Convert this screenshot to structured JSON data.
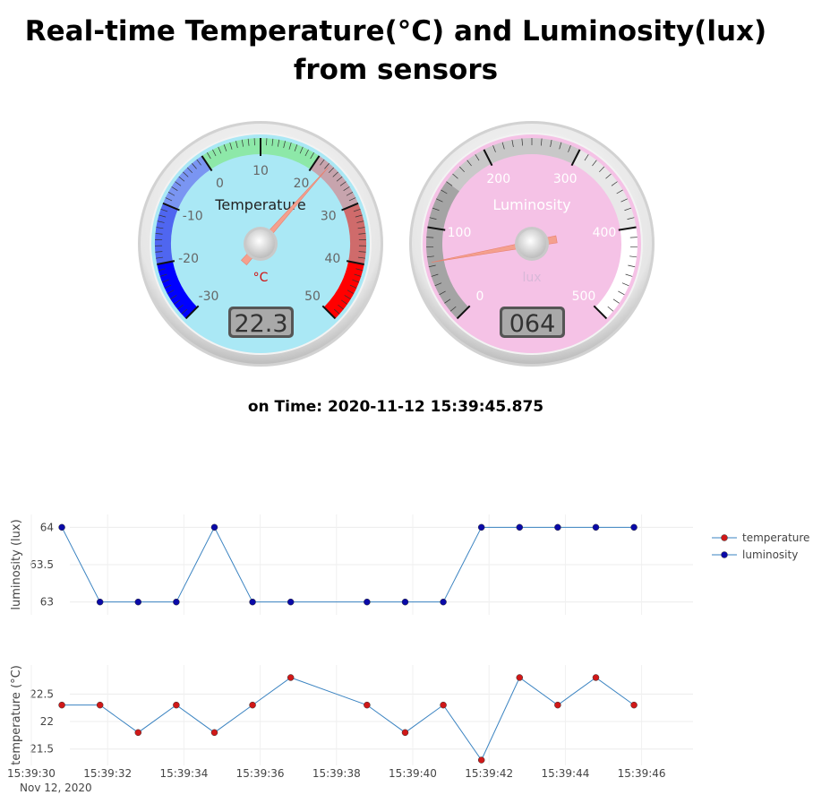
{
  "page": {
    "title": "Real-time Temperature(°C) and Luminosity(lux) from sensors",
    "time_label": "on Time:",
    "time_value": "2020-11-12 15:39:45.875"
  },
  "gauges": {
    "temperature": {
      "title": "Temperature",
      "units": "°C",
      "value": 22.3,
      "display": "22.3",
      "min": -30,
      "max": 50,
      "ticks": [
        "-30",
        "-20",
        "-10",
        "0",
        "10",
        "20",
        "30",
        "40",
        "50"
      ],
      "colors": {
        "face": "#aae8f5",
        "needle": "#f4a08e",
        "units": "#d01010"
      },
      "highlights": [
        {
          "from": -30,
          "to": -20,
          "color": "#0000ff"
        },
        {
          "from": -20,
          "to": -10,
          "color": "#4f66f0"
        },
        {
          "from": -10,
          "to": 0,
          "color": "#7a95f2"
        },
        {
          "from": 0,
          "to": 20,
          "color": "#8de8a8"
        },
        {
          "from": 20,
          "to": 30,
          "color": "#c7a4ad"
        },
        {
          "from": 30,
          "to": 40,
          "color": "#cf6b6b"
        },
        {
          "from": 40,
          "to": 50,
          "color": "#ff0000"
        }
      ]
    },
    "luminosity": {
      "title": "Luminosity",
      "units": "lux",
      "value": 64,
      "display": "064",
      "min": 0,
      "max": 500,
      "ticks": [
        "0",
        "100",
        "200",
        "300",
        "400",
        "500"
      ],
      "colors": {
        "face": "#f5c2e6",
        "needle": "#f4a08e",
        "units": "#d8b8d8"
      },
      "highlights": [
        {
          "from": 0,
          "to": 150,
          "color": "#a4a4a4"
        },
        {
          "from": 150,
          "to": 300,
          "color": "#c8c8c8"
        },
        {
          "from": 300,
          "to": 400,
          "color": "#e8e8e8"
        },
        {
          "from": 400,
          "to": 500,
          "color": "#ffffff"
        }
      ]
    }
  },
  "chart_data": [
    {
      "type": "line",
      "ylabel": "luminosity (lux)",
      "ylim": [
        62.9,
        64.1
      ],
      "yticks": [
        "63",
        "63.5",
        "64"
      ],
      "x": [
        "15:39:30.8",
        "15:39:31.8",
        "15:39:32.8",
        "15:39:33.8",
        "15:39:34.8",
        "15:39:35.8",
        "15:39:36.8",
        "15:39:38.8",
        "15:39:39.8",
        "15:39:40.8",
        "15:39:41.8",
        "15:39:42.8",
        "15:39:43.8",
        "15:39:44.8",
        "15:39:45.8"
      ],
      "series": [
        {
          "name": "luminosity",
          "marker_color": "#0a0aa8",
          "line_color": "#3a83c1",
          "values": [
            64,
            63,
            63,
            63,
            64,
            63,
            63,
            63,
            63,
            63,
            64,
            64,
            64,
            64,
            64
          ]
        }
      ]
    },
    {
      "type": "line",
      "ylabel": "temperature (°C)",
      "ylim": [
        21.3,
        22.93
      ],
      "yticks": [
        "21.5",
        "22",
        "22.5"
      ],
      "xticks": [
        "15:39:30",
        "15:39:32",
        "15:39:34",
        "15:39:36",
        "15:39:38",
        "15:39:40",
        "15:39:42",
        "15:39:44",
        "15:39:46"
      ],
      "xdate": "Nov 12, 2020",
      "x": [
        "15:39:30.8",
        "15:39:31.8",
        "15:39:32.8",
        "15:39:33.8",
        "15:39:34.8",
        "15:39:35.8",
        "15:39:36.8",
        "15:39:38.8",
        "15:39:39.8",
        "15:39:40.8",
        "15:39:41.8",
        "15:39:42.8",
        "15:39:43.8",
        "15:39:44.8",
        "15:39:45.8"
      ],
      "series": [
        {
          "name": "temperature",
          "marker_color": "#d01818",
          "line_color": "#3a83c1",
          "values": [
            22.3,
            22.3,
            21.8,
            22.3,
            21.8,
            22.3,
            22.8,
            22.3,
            21.8,
            22.3,
            21.3,
            22.8,
            22.3,
            22.8,
            22.3
          ]
        }
      ]
    }
  ],
  "legend": {
    "placement": "top-right",
    "items": [
      {
        "label": "temperature",
        "color": "#d01818"
      },
      {
        "label": "luminosity",
        "color": "#0a0aa8"
      }
    ]
  }
}
